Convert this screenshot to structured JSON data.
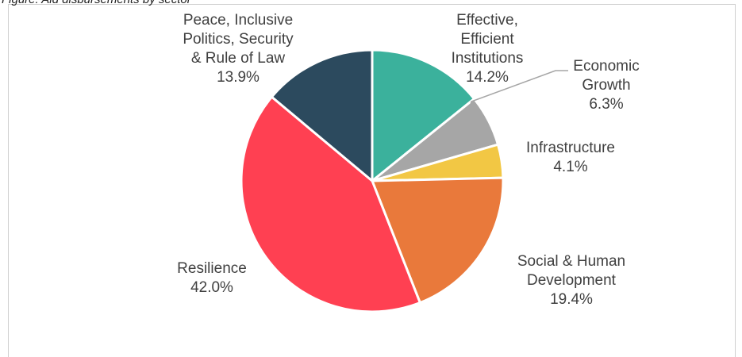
{
  "caption": "Figure: Aid disbursements by sector",
  "chart_data": {
    "type": "pie",
    "title": "",
    "start_angle_deg": 0,
    "direction": "clockwise",
    "slices": [
      {
        "name": "Effective, Efficient Institutions",
        "label_lines": [
          "Effective,",
          "Efficient",
          "Institutions"
        ],
        "value": 14.2,
        "value_label": "14.2%",
        "color": "#3BB19C"
      },
      {
        "name": "Economic Growth",
        "label_lines": [
          "Economic",
          "Growth"
        ],
        "value": 6.3,
        "value_label": "6.3%",
        "color": "#A6A6A6"
      },
      {
        "name": "Infrastructure",
        "label_lines": [
          "Infrastructure"
        ],
        "value": 4.1,
        "value_label": "4.1%",
        "color": "#F2C744"
      },
      {
        "name": "Social & Human Development",
        "label_lines": [
          "Social & Human",
          "Development"
        ],
        "value": 19.4,
        "value_label": "19.4%",
        "color": "#E9793B"
      },
      {
        "name": "Resilience",
        "label_lines": [
          "Resilience"
        ],
        "value": 42.0,
        "value_label": "42.0%",
        "color": "#FF4052"
      },
      {
        "name": "Peace, Inclusive Politics, Security & Rule of Law",
        "label_lines": [
          "Peace, Inclusive",
          "Politics, Security",
          "& Rule of Law"
        ],
        "value": 13.9,
        "value_label": "13.9%",
        "color": "#2C4A5E"
      }
    ]
  }
}
